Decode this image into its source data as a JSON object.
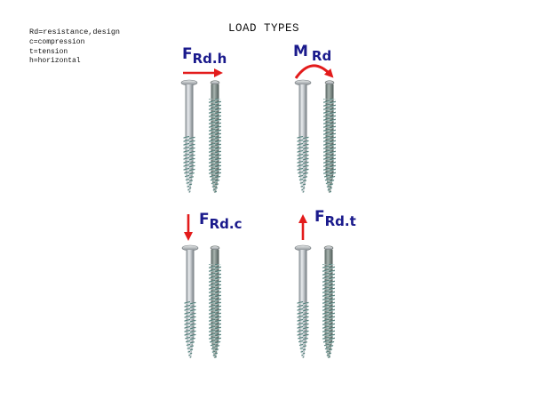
{
  "title": "LOAD TYPES",
  "legend": [
    {
      "text": "Rd=resistance,design"
    },
    {
      "text": "c=compression"
    },
    {
      "text": "t=tension"
    },
    {
      "text": "h=horizontal"
    }
  ],
  "loads": {
    "horizontal": {
      "symbol": "F",
      "subscript": "Rd.h",
      "arrow": "right-arrow"
    },
    "moment": {
      "symbol": "M",
      "subscript": "Rd",
      "arrow": "curved-arrow"
    },
    "compression": {
      "symbol": "F",
      "subscript": "Rd.c",
      "arrow": "down-arrow"
    },
    "tension": {
      "symbol": "F",
      "subscript": "Rd.t",
      "arrow": "up-arrow"
    }
  },
  "colors": {
    "arrow": "#e31b1b",
    "label": "#1a1a8c",
    "shaft": "#b8bec4",
    "thread": "#5e8a86"
  }
}
